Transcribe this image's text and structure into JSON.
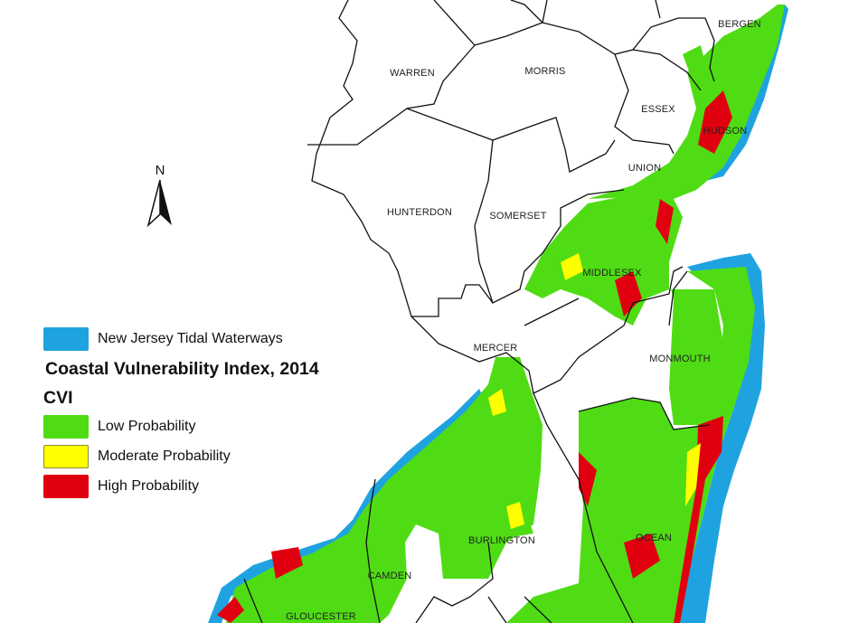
{
  "map": {
    "counties": [
      "WARREN",
      "MORRIS",
      "BERGEN",
      "ESSEX",
      "HUDSON",
      "UNION",
      "HUNTERDON",
      "SOMERSET",
      "MIDDLESEX",
      "MERCER",
      "MONMOUTH",
      "BURLINGTON",
      "OCEAN",
      "CAMDEN",
      "GLOUCESTER"
    ],
    "north_arrow": {
      "label": "N",
      "icon": "north-arrow-icon"
    }
  },
  "legend": {
    "waterways": {
      "label": "New Jersey Tidal Waterways",
      "color": "#1fa3e0"
    },
    "title": "Coastal Vulnerability Index, 2014",
    "subtitle": "CVI",
    "items": [
      {
        "label": "Low Probability",
        "color": "#4fdc14"
      },
      {
        "label": "Moderate Probability",
        "color": "#ffff00"
      },
      {
        "label": "High Probability",
        "color": "#e0000f"
      }
    ]
  }
}
